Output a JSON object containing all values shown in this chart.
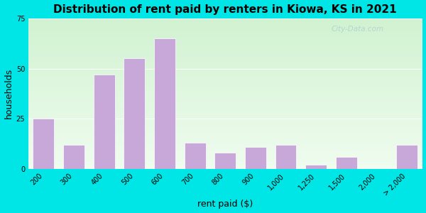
{
  "title": "Distribution of rent paid by renters in Kiowa, KS in 2021",
  "xlabel": "rent paid ($)",
  "ylabel": "households",
  "bar_color": "#c8a8d8",
  "bar_edgecolor": "#ffffff",
  "background_outer": "#00e5e5",
  "ylim": [
    0,
    75
  ],
  "yticks": [
    0,
    25,
    50,
    75
  ],
  "categories": [
    "200",
    "300",
    "400",
    "500",
    "600",
    "700",
    "800",
    "900",
    "1,000",
    "1,250",
    "1,500",
    "2,000",
    "> 2,000"
  ],
  "values": [
    25,
    12,
    47,
    55,
    65,
    13,
    8,
    11,
    12,
    2,
    6,
    0,
    12
  ],
  "title_fontsize": 11,
  "axis_label_fontsize": 9,
  "tick_fontsize": 7,
  "watermark": "City-Data.com"
}
